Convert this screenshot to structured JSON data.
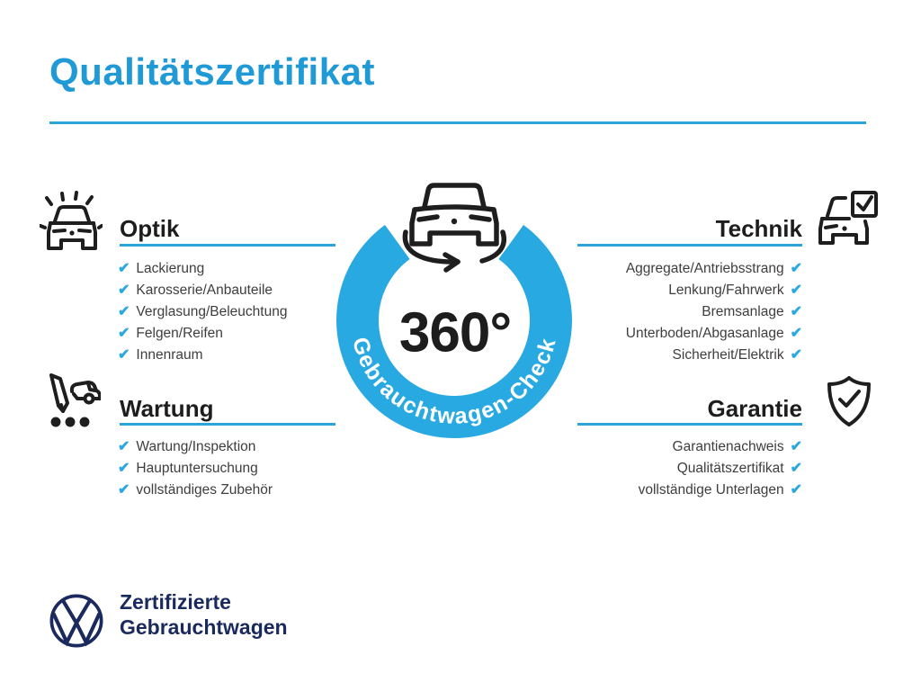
{
  "title": "Qualitätszertifikat",
  "colors": {
    "accent_blue": "#1f9ad6",
    "rule_blue": "#2da4d8",
    "ring_blue": "#29a9e2",
    "check_blue": "#2aa8e0",
    "vw_navy": "#1b2a5e",
    "heading_dark": "#1d1d1d",
    "item_gray": "#3e3e3e"
  },
  "badge": {
    "degree_label": "360°",
    "ring_label": "Gebrauchtwagen-Check"
  },
  "icons": {
    "check_glyph": "✔",
    "optik_icon": "shiny-car-icon",
    "wartung_icon": "service-checklist-icon",
    "technik_icon": "car-checkbox-icon",
    "garantie_icon": "shield-check-icon",
    "badge_icon": "rotating-car-icon",
    "brand_icon": "vw-logo"
  },
  "sections": {
    "optik": {
      "title": "Optik",
      "items": [
        "Lackierung",
        "Karosserie/Anbauteile",
        "Verglasung/Beleuchtung",
        "Felgen/Reifen",
        "Innenraum"
      ]
    },
    "wartung": {
      "title": "Wartung",
      "items": [
        "Wartung/Inspektion",
        "Hauptuntersuchung",
        "vollständiges Zubehör"
      ]
    },
    "technik": {
      "title": "Technik",
      "items": [
        "Aggregate/Antriebsstrang",
        "Lenkung/Fahrwerk",
        "Bremsanlage",
        "Unterboden/Abgasanlage",
        "Sicherheit/Elektrik"
      ]
    },
    "garantie": {
      "title": "Garantie",
      "items": [
        "Garantienachweis",
        "Qualitätszertifikat",
        "vollständige Unterlagen"
      ]
    }
  },
  "footer": {
    "brand_line1": "Zertifizierte",
    "brand_line2": "Gebrauchtwagen"
  }
}
